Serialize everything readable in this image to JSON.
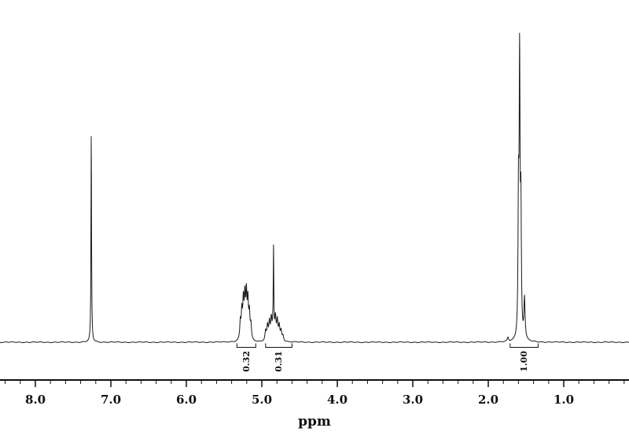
{
  "chart_data": {
    "type": "line",
    "title": "",
    "xlabel": "ppm",
    "ylabel": "",
    "x_axis": {
      "reversed": true,
      "ppm_at_left_edge": 8.47,
      "ppm_at_right_edge": 0.14,
      "major_ticks": [
        8.0,
        7.0,
        6.0,
        5.0,
        4.0,
        3.0,
        2.0,
        1.0
      ],
      "minor_tick_interval": 0.2,
      "minor_tick_start": 8.4,
      "minor_tick_end": 0.2
    },
    "ylim": [
      0,
      1.05
    ],
    "grid": false,
    "legend": "none",
    "peaks": [
      {
        "name": "solvent-singlet-7.26ppm",
        "components": [
          {
            "ppm": 7.26,
            "h": 0.662,
            "w": 0.0045
          }
        ]
      },
      {
        "name": "multiplet-5.2ppm",
        "components": [
          {
            "ppm": 5.285,
            "h": 0.055,
            "w": 0.009
          },
          {
            "ppm": 5.265,
            "h": 0.085,
            "w": 0.009
          },
          {
            "ppm": 5.245,
            "h": 0.115,
            "w": 0.009
          },
          {
            "ppm": 5.225,
            "h": 0.125,
            "w": 0.009
          },
          {
            "ppm": 5.205,
            "h": 0.135,
            "w": 0.009
          },
          {
            "ppm": 5.185,
            "h": 0.115,
            "w": 0.009
          },
          {
            "ppm": 5.165,
            "h": 0.08,
            "w": 0.009
          },
          {
            "ppm": 5.145,
            "h": 0.045,
            "w": 0.009
          }
        ]
      },
      {
        "name": "multiplet-4.8ppm",
        "components": [
          {
            "ppm": 4.95,
            "h": 0.03,
            "w": 0.01
          },
          {
            "ppm": 4.925,
            "h": 0.045,
            "w": 0.01
          },
          {
            "ppm": 4.9,
            "h": 0.055,
            "w": 0.01
          },
          {
            "ppm": 4.875,
            "h": 0.065,
            "w": 0.01
          },
          {
            "ppm": 4.845,
            "h": 0.25,
            "w": 0.004
          },
          {
            "ppm": 4.85,
            "h": 0.05,
            "w": 0.01
          },
          {
            "ppm": 4.82,
            "h": 0.07,
            "w": 0.01
          },
          {
            "ppm": 4.795,
            "h": 0.06,
            "w": 0.01
          },
          {
            "ppm": 4.77,
            "h": 0.045,
            "w": 0.01
          },
          {
            "ppm": 4.745,
            "h": 0.03,
            "w": 0.01
          },
          {
            "ppm": 4.72,
            "h": 0.018,
            "w": 0.01
          }
        ]
      },
      {
        "name": "main-peak-1.57ppm",
        "components": [
          {
            "ppm": 1.74,
            "h": 0.012,
            "w": 0.01
          },
          {
            "ppm": 1.6,
            "h": 0.42,
            "w": 0.007
          },
          {
            "ppm": 1.585,
            "h": 0.86,
            "w": 0.007
          },
          {
            "ppm": 1.568,
            "h": 0.4,
            "w": 0.007
          },
          {
            "ppm": 1.52,
            "h": 0.13,
            "w": 0.009
          }
        ]
      }
    ],
    "integrations": [
      {
        "label": "0.32",
        "from": 5.33,
        "to": 5.08
      },
      {
        "label": "0.31",
        "from": 4.95,
        "to": 4.6
      },
      {
        "label": "1.00",
        "from": 1.71,
        "to": 1.34
      }
    ],
    "colors": {
      "trace": "#1a1a1a",
      "axis": "#111111",
      "background": "#ffffff"
    }
  }
}
